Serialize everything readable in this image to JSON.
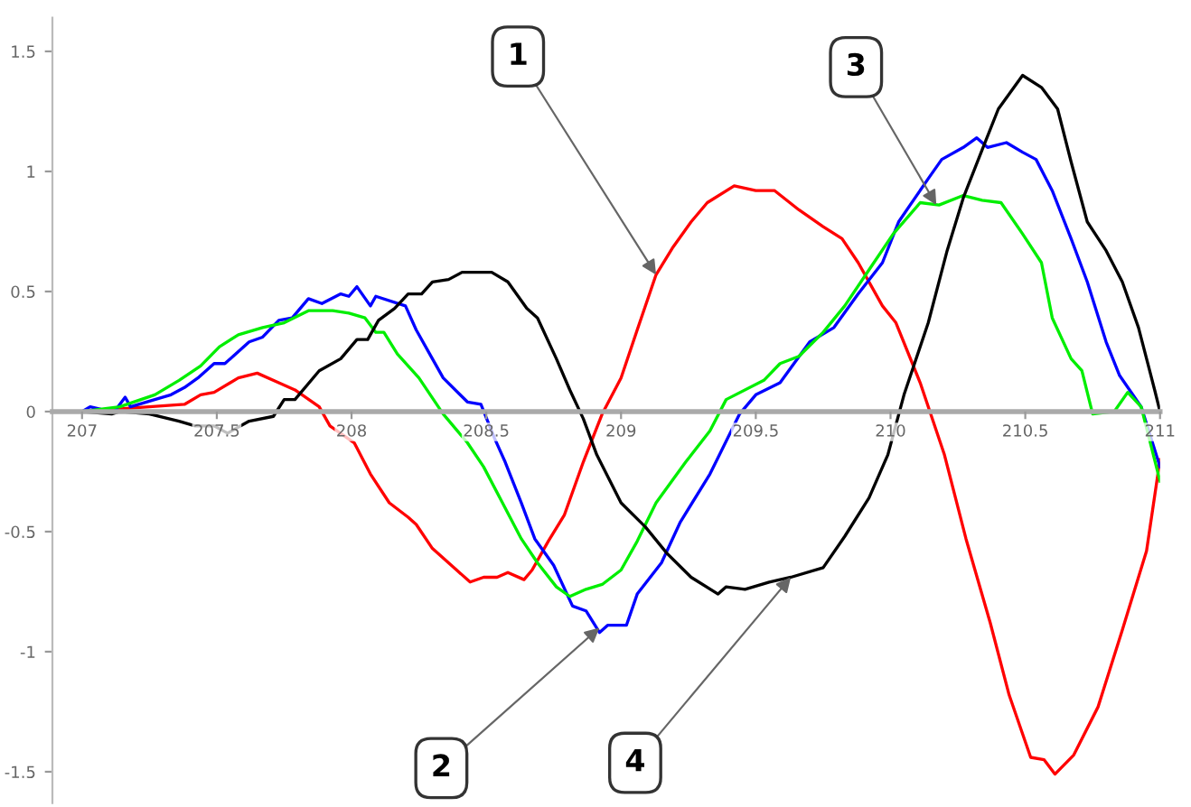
{
  "chart_data": {
    "type": "line",
    "xlim": [
      206.89,
      211.0
    ],
    "ylim": [
      -1.63,
      1.64
    ],
    "xticks": [
      207,
      207.5,
      208,
      208.5,
      209,
      209.5,
      210,
      210.5,
      211
    ],
    "yticks": [
      -1.5,
      -1,
      -0.5,
      0,
      0.5,
      1,
      1.5
    ],
    "grid": false,
    "marker": "none",
    "line_style": "solid",
    "annotations": [
      {
        "text": "1",
        "x": 209.13,
        "y": 0.57
      },
      {
        "text": "2",
        "x": 208.92,
        "y": -0.9
      },
      {
        "text": "3",
        "x": 210.17,
        "y": 0.86
      },
      {
        "text": "4",
        "x": 209.63,
        "y": -0.69
      }
    ],
    "series": [
      {
        "color": "#ff0000",
        "x": [
          207,
          207.25,
          207.38,
          207.44,
          207.49,
          207.58,
          207.65,
          207.73,
          207.79,
          207.88,
          207.92,
          208.01,
          208.07,
          208.14,
          208.21,
          208.24,
          208.3,
          208.39,
          208.44,
          208.49,
          208.54,
          208.58,
          208.64,
          208.67,
          208.73,
          208.79,
          208.86,
          208.93,
          209.0,
          209.06,
          209.13,
          209.19,
          209.26,
          209.32,
          209.42,
          209.5,
          209.57,
          209.66,
          209.75,
          209.82,
          209.88,
          209.97,
          210.02,
          210.11,
          210.2,
          210.28,
          210.37,
          210.44,
          210.52,
          210.57,
          210.61,
          210.68,
          210.77,
          210.86,
          210.95,
          211.0
        ],
        "values": [
          0,
          0.02,
          0.03,
          0.07,
          0.08,
          0.14,
          0.16,
          0.12,
          0.09,
          0.02,
          -0.06,
          -0.13,
          -0.26,
          -0.38,
          -0.44,
          -0.47,
          -0.57,
          -0.66,
          -0.71,
          -0.69,
          -0.69,
          -0.67,
          -0.7,
          -0.66,
          -0.54,
          -0.43,
          -0.21,
          -0.01,
          0.14,
          0.34,
          0.57,
          0.68,
          0.79,
          0.87,
          0.94,
          0.92,
          0.92,
          0.84,
          0.77,
          0.72,
          0.62,
          0.44,
          0.37,
          0.12,
          -0.18,
          -0.53,
          -0.88,
          -1.18,
          -1.44,
          -1.45,
          -1.51,
          -1.43,
          -1.23,
          -0.91,
          -0.58,
          -0.2
        ]
      },
      {
        "color": "#0000ff",
        "x": [
          207,
          207.03,
          207.07,
          207.12,
          207.16,
          207.18,
          207.27,
          207.33,
          207.38,
          207.43,
          207.49,
          207.53,
          207.62,
          207.67,
          207.73,
          207.78,
          207.84,
          207.89,
          207.96,
          207.99,
          208.02,
          208.07,
          208.09,
          208.2,
          208.24,
          208.29,
          208.34,
          208.43,
          208.48,
          208.53,
          208.57,
          208.63,
          208.68,
          208.75,
          208.82,
          208.87,
          208.92,
          208.95,
          209.02,
          209.06,
          209.15,
          209.22,
          209.33,
          209.44,
          209.5,
          209.59,
          209.7,
          209.79,
          209.88,
          209.97,
          210.03,
          210.14,
          210.19,
          210.27,
          210.32,
          210.36,
          210.43,
          210.49,
          210.54,
          210.6,
          210.67,
          210.73,
          210.8,
          210.85,
          210.93,
          211.0
        ],
        "values": [
          0,
          0.02,
          0.01,
          0,
          0.06,
          0.02,
          0.05,
          0.07,
          0.1,
          0.14,
          0.2,
          0.2,
          0.29,
          0.31,
          0.38,
          0.39,
          0.47,
          0.45,
          0.49,
          0.48,
          0.52,
          0.44,
          0.48,
          0.44,
          0.34,
          0.24,
          0.14,
          0.04,
          0.03,
          -0.11,
          -0.21,
          -0.38,
          -0.53,
          -0.64,
          -0.81,
          -0.83,
          -0.92,
          -0.89,
          -0.89,
          -0.76,
          -0.63,
          -0.46,
          -0.26,
          -0.01,
          0.07,
          0.12,
          0.29,
          0.35,
          0.49,
          0.62,
          0.79,
          0.97,
          1.05,
          1.1,
          1.14,
          1.1,
          1.12,
          1.08,
          1.05,
          0.92,
          0.72,
          0.54,
          0.29,
          0.15,
          0.02,
          -0.23
        ]
      },
      {
        "color": "#00ee00",
        "x": [
          207,
          207.14,
          207.27,
          207.36,
          207.44,
          207.51,
          207.58,
          207.67,
          207.75,
          207.84,
          207.93,
          207.99,
          208.05,
          208.09,
          208.12,
          208.17,
          208.25,
          208.34,
          208.43,
          208.49,
          208.56,
          208.63,
          208.69,
          208.76,
          208.81,
          208.87,
          208.93,
          209.0,
          209.06,
          209.13,
          209.24,
          209.33,
          209.39,
          209.53,
          209.59,
          209.66,
          209.75,
          209.83,
          209.92,
          210.01,
          210.11,
          210.18,
          210.27,
          210.34,
          210.41,
          210.49,
          210.56,
          210.6,
          210.67,
          210.71,
          210.75,
          210.83,
          210.88,
          210.93,
          211.0
        ],
        "values": [
          0,
          0.02,
          0.07,
          0.13,
          0.19,
          0.27,
          0.32,
          0.35,
          0.37,
          0.42,
          0.42,
          0.41,
          0.39,
          0.33,
          0.33,
          0.24,
          0.14,
          -0.01,
          -0.13,
          -0.23,
          -0.38,
          -0.53,
          -0.63,
          -0.73,
          -0.77,
          -0.74,
          -0.72,
          -0.66,
          -0.54,
          -0.38,
          -0.21,
          -0.08,
          0.05,
          0.13,
          0.2,
          0.23,
          0.33,
          0.44,
          0.59,
          0.74,
          0.87,
          0.86,
          0.9,
          0.88,
          0.87,
          0.74,
          0.62,
          0.39,
          0.22,
          0.17,
          -0.01,
          0.0,
          0.08,
          0.02,
          -0.29
        ]
      },
      {
        "color": "#000000",
        "x": [
          207,
          207.11,
          207.14,
          207.25,
          207.36,
          207.42,
          207.49,
          207.54,
          207.62,
          207.71,
          207.75,
          207.79,
          207.88,
          207.96,
          208.02,
          208.06,
          208.1,
          208.16,
          208.21,
          208.26,
          208.3,
          208.36,
          208.41,
          208.52,
          208.58,
          208.65,
          208.69,
          208.76,
          208.81,
          208.86,
          208.91,
          209.0,
          209.09,
          209.17,
          209.26,
          209.36,
          209.39,
          209.46,
          209.55,
          209.63,
          209.75,
          209.83,
          209.92,
          209.99,
          210.05,
          210.14,
          210.21,
          210.27,
          210.34,
          210.4,
          210.49,
          210.56,
          210.62,
          210.67,
          210.73,
          210.8,
          210.86,
          210.92,
          210.98,
          211.0
        ],
        "values": [
          0,
          -0.01,
          0,
          -0.01,
          -0.04,
          -0.06,
          -0.06,
          -0.09,
          -0.04,
          -0.02,
          0.05,
          0.05,
          0.17,
          0.22,
          0.3,
          0.3,
          0.38,
          0.43,
          0.49,
          0.49,
          0.54,
          0.55,
          0.58,
          0.58,
          0.54,
          0.43,
          0.39,
          0.22,
          0.09,
          -0.03,
          -0.18,
          -0.38,
          -0.48,
          -0.59,
          -0.69,
          -0.76,
          -0.73,
          -0.74,
          -0.71,
          -0.69,
          -0.65,
          -0.52,
          -0.36,
          -0.18,
          0.07,
          0.37,
          0.67,
          0.89,
          1.09,
          1.26,
          1.4,
          1.35,
          1.26,
          1.04,
          0.79,
          0.67,
          0.54,
          0.35,
          0.09,
          0
        ]
      }
    ]
  }
}
